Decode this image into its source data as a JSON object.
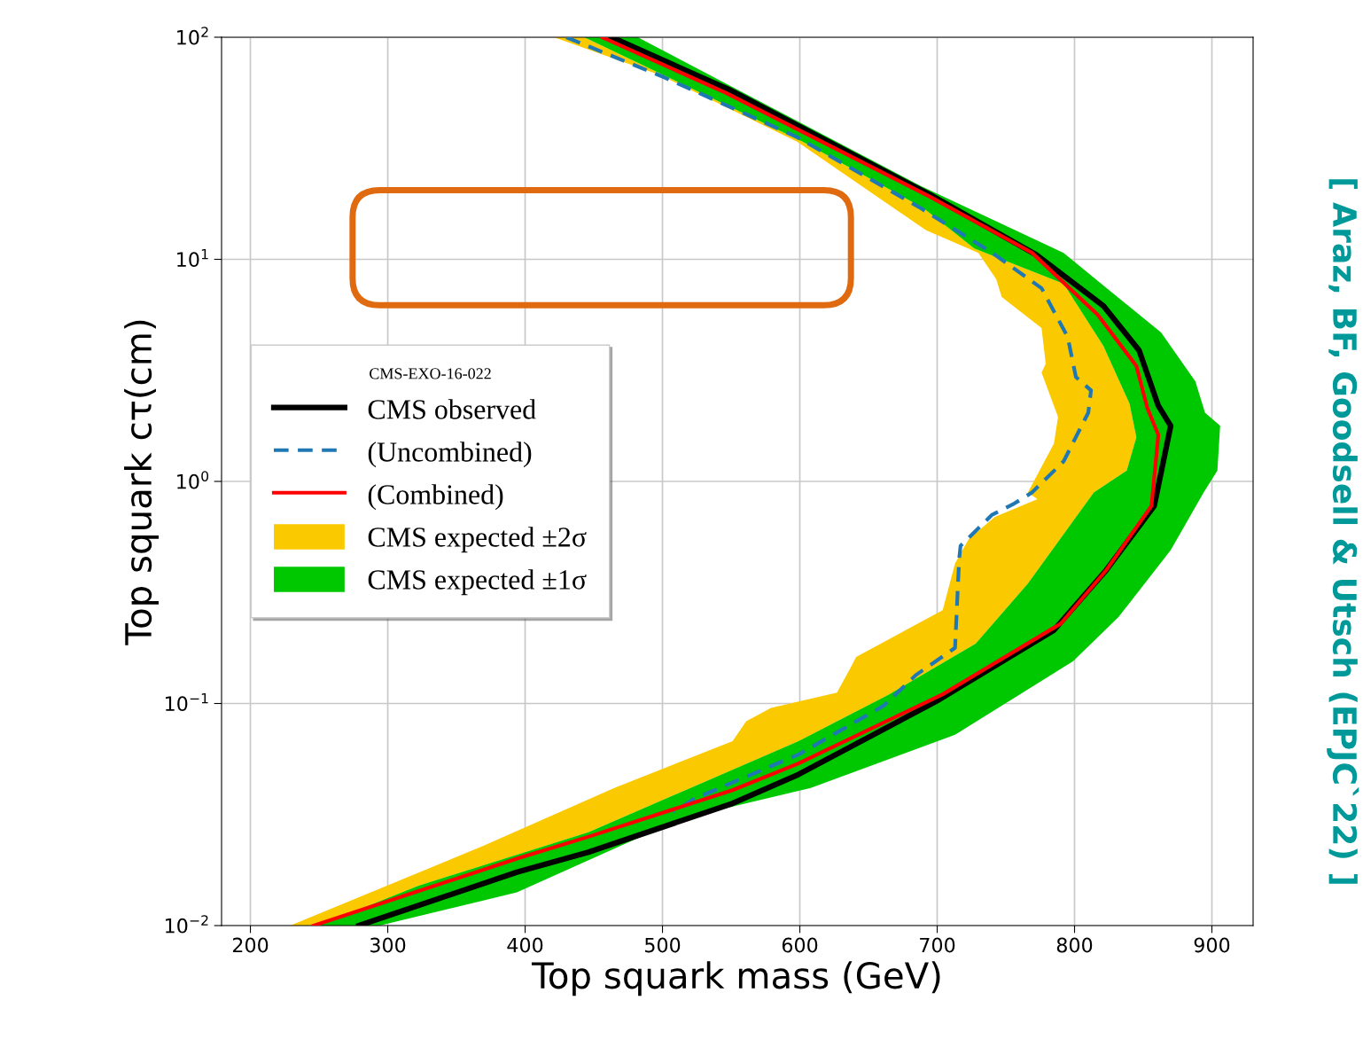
{
  "chart_data": {
    "type": "line",
    "xlabel": "Top squark mass (GeV)",
    "ylabel": "Top squark cτ(cm)",
    "legend_title": "CMS-EXO-16-022",
    "annotations": [
      "[ Araz, BF, Goodsell & Utsch (EPJC`22) ]"
    ],
    "log": "y",
    "grid": true,
    "legend": "center left",
    "xlim": [
      179,
      930
    ],
    "xticks": [
      200,
      300,
      400,
      500,
      600,
      700,
      800,
      900
    ],
    "ylim": [
      0.01,
      100
    ],
    "yticks": [
      {
        "value": 0.01,
        "label": "10$^{−2}$"
      },
      {
        "value": 0.1,
        "label": "10$^{−1}$"
      },
      {
        "value": 1,
        "label": "10$^{0}$"
      },
      {
        "value": 10,
        "label": "10$^{1}$"
      },
      {
        "value": 100,
        "label": "10$^{2}$"
      }
    ],
    "series": [
      {
        "type": "area",
        "name": "CMS expected ±2σ",
        "color": "#fbc900",
        "x": [
          421,
          498,
          598,
          692,
          730,
          743,
          747,
          776,
          779,
          776,
          788,
          785,
          766,
          773,
          742,
          723,
          713,
          704,
          641,
          637,
          627,
          579,
          561,
          551,
          465,
          370,
          229,
          250,
          322,
          446,
          513,
          599,
          665,
          728,
          766,
          814,
          838,
          845,
          840,
          821,
          792,
          727,
          690,
          602,
          443
        ],
        "values": [
          100,
          67.6,
          33.9,
          13.5,
          10.7,
          8.13,
          6.76,
          4.9,
          3.39,
          3.09,
          1.95,
          1.48,
          0.891,
          0.832,
          0.692,
          0.55,
          0.427,
          0.263,
          0.162,
          0.145,
          0.112,
          0.0955,
          0.0832,
          0.0676,
          0.0417,
          0.0229,
          0.01,
          0.01,
          0.0151,
          0.0263,
          0.0398,
          0.0676,
          0.11,
          0.186,
          0.347,
          0.891,
          1.12,
          1.58,
          2.24,
          4.07,
          7.76,
          11.2,
          17,
          33.9,
          100
        ]
      },
      {
        "type": "area",
        "name": "CMS expected ±1σ",
        "color": "#00c800",
        "x": [
          443,
          602,
          690,
          727,
          792,
          821,
          840,
          845,
          838,
          814,
          766,
          728,
          665,
          599,
          513,
          446,
          322,
          250,
          294,
          394,
          513,
          608,
          713,
          799,
          832,
          870,
          894,
          904,
          906,
          895,
          888,
          863,
          792,
          688,
          482
        ],
        "values": [
          100,
          33.9,
          17,
          11.2,
          7.76,
          4.07,
          2.24,
          1.58,
          1.12,
          0.891,
          0.347,
          0.186,
          0.11,
          0.0676,
          0.0398,
          0.0263,
          0.0151,
          0.01,
          0.01,
          0.0141,
          0.0302,
          0.0417,
          0.0724,
          0.155,
          0.245,
          0.49,
          0.891,
          1.12,
          1.78,
          2.04,
          2.82,
          4.68,
          10.7,
          21.4,
          100
        ]
      },
      {
        "name": "CMS observed",
        "color": "#000000",
        "line_style": "solid",
        "x": [
          463,
          550,
          695,
          772,
          821,
          847,
          861,
          870,
          858,
          823,
          785,
          699,
          599,
          551,
          446,
          394,
          279
        ],
        "values": [
          100,
          57.5,
          19.5,
          10.5,
          6.17,
          3.89,
          2.19,
          1.78,
          0.776,
          0.398,
          0.214,
          0.102,
          0.0479,
          0.0355,
          0.0214,
          0.0174,
          0.01
        ]
      },
      {
        "name": "(Uncombined)",
        "color": "#1f77b4",
        "line_style": "dashed",
        "x": [
          430,
          501,
          598,
          688,
          740,
          776,
          795,
          801,
          812,
          810,
          792,
          769,
          756,
          740,
          717,
          716,
          713,
          685,
          661,
          599,
          523,
          508
        ],
        "values": [
          100,
          66.1,
          35.5,
          17,
          10.7,
          7.41,
          4.47,
          2.95,
          2.57,
          2.04,
          1.23,
          0.891,
          0.794,
          0.708,
          0.513,
          0.447,
          0.178,
          0.135,
          0.0977,
          0.0589,
          0.0372,
          0.0324
        ]
      },
      {
        "name": "(Combined)",
        "color": "#ff0000",
        "line_style": "solid",
        "x": [
          456,
          546,
          695,
          769,
          817,
          845,
          853,
          861,
          856,
          823,
          790,
          704,
          599,
          551,
          446,
          394,
          246
        ],
        "values": [
          100,
          56.2,
          19.1,
          10.7,
          5.62,
          3.31,
          2.14,
          1.62,
          0.776,
          0.398,
          0.229,
          0.11,
          0.0537,
          0.0407,
          0.0251,
          0.02,
          0.01
        ]
      }
    ]
  }
}
